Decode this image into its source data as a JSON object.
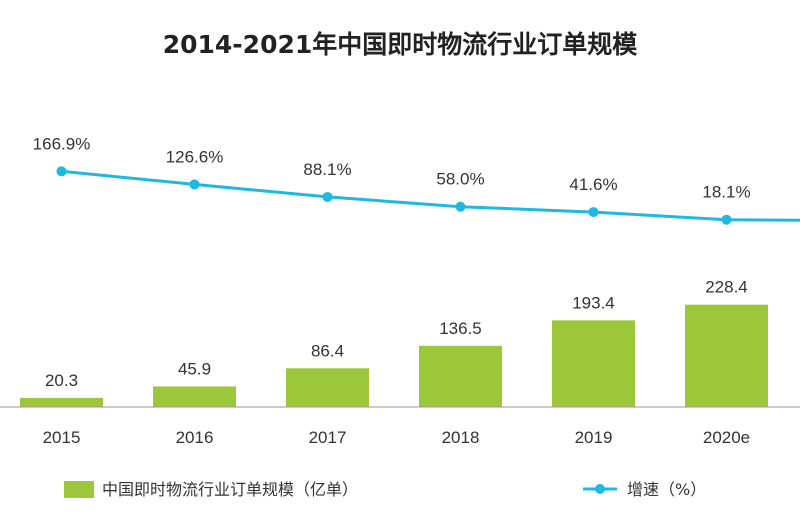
{
  "chart_data": {
    "type": "bar+line",
    "title": "2014-2021年中国即时物流行业订单规模",
    "categories": [
      "2015",
      "2016",
      "2017",
      "2018",
      "2019",
      "2020e"
    ],
    "bar_series": {
      "name": "中国即时物流行业订单规模（亿单）",
      "color": "#9dc73a",
      "values": [
        20.3,
        45.9,
        86.4,
        136.5,
        193.4,
        228.4
      ],
      "labels": [
        "20.3",
        "45.9",
        "86.4",
        "136.5",
        "193.4",
        "228.4"
      ]
    },
    "line_series": {
      "name": "增速（%）",
      "color": "#1fb8e0",
      "values": [
        166.9,
        126.6,
        88.1,
        58.0,
        41.6,
        18.1
      ],
      "labels": [
        "166.9%",
        "126.6%",
        "88.1%",
        "58.0%",
        "41.6%",
        "18.1%"
      ]
    },
    "grid": false,
    "legend_position": "bottom"
  }
}
